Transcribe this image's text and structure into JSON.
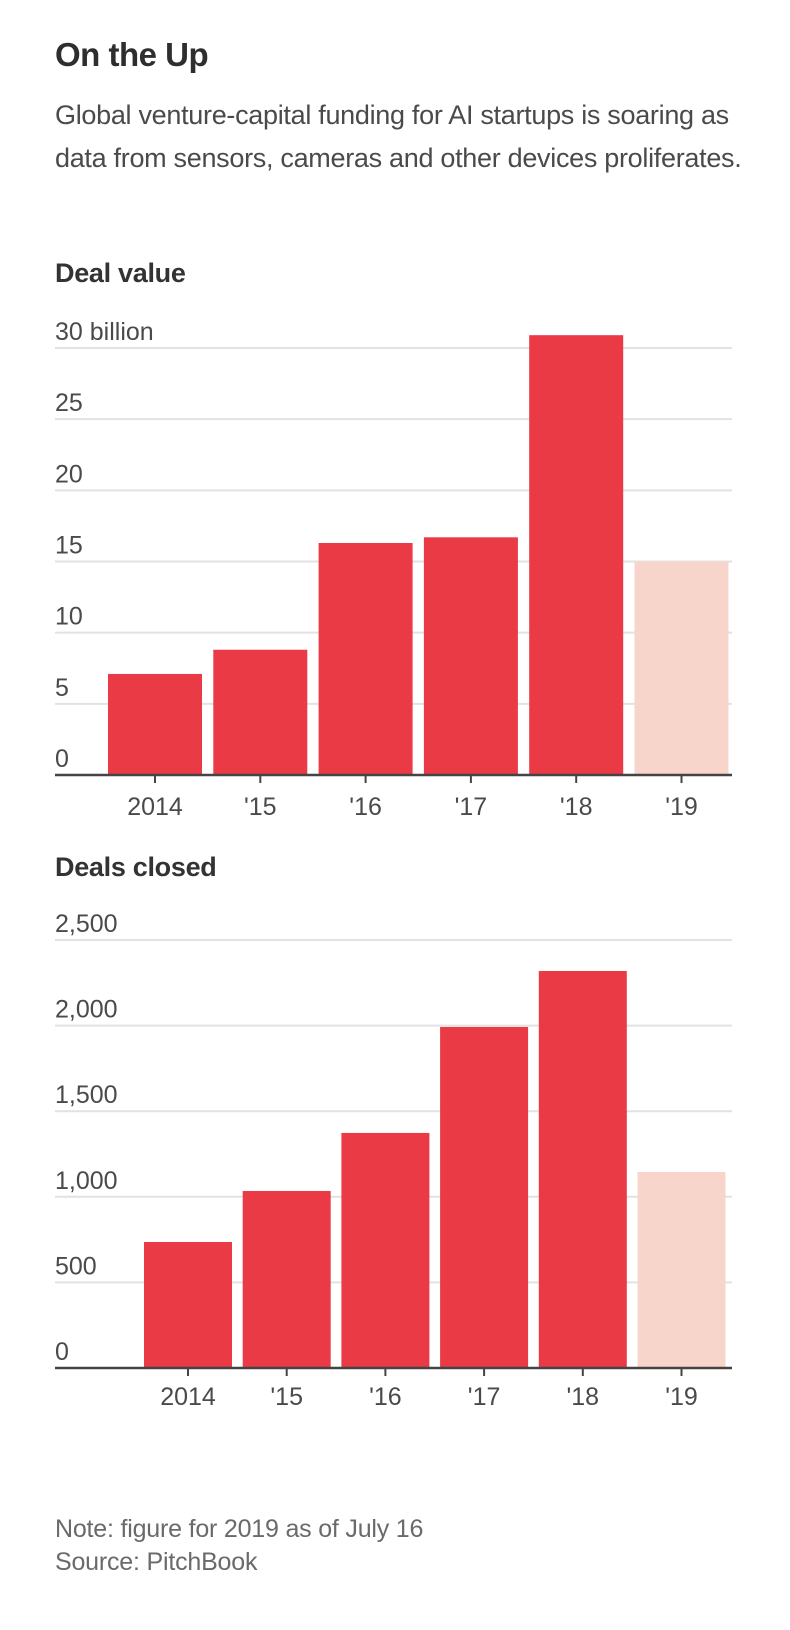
{
  "header": {
    "title": "On the Up",
    "subtitle": "Global venture-capital funding for AI startups is soaring as data from sensors, cameras and other devices proliferates."
  },
  "colors": {
    "bar": "#e93a45",
    "bar_partial": "#f8d5ca",
    "gridline": "#e2e2e2",
    "axis": "#444444"
  },
  "chart_data": [
    {
      "type": "bar",
      "title": "Deal value",
      "xlabel": "",
      "ylabel": "",
      "categories": [
        "2014",
        "'15",
        "'16",
        "'17",
        "'18",
        "'19"
      ],
      "values": [
        7.1,
        8.8,
        16.3,
        16.7,
        30.9,
        15.0
      ],
      "partial": [
        false,
        false,
        false,
        false,
        false,
        true
      ],
      "unit": "billion",
      "ylim": [
        0,
        30
      ],
      "yticks": [
        0,
        5,
        10,
        15,
        20,
        25,
        30
      ],
      "ytick_labels": [
        "0",
        "5",
        "10",
        "15",
        "20",
        "25",
        "30 billion"
      ],
      "grid": true
    },
    {
      "type": "bar",
      "title": "Deals closed",
      "xlabel": "",
      "ylabel": "",
      "categories": [
        "2014",
        "'15",
        "'16",
        "'17",
        "'18",
        "'19"
      ],
      "values": [
        736,
        1034,
        1373,
        1992,
        2319,
        1145
      ],
      "partial": [
        false,
        false,
        false,
        false,
        false,
        true
      ],
      "ylim": [
        0,
        2500
      ],
      "yticks": [
        0,
        500,
        1000,
        1500,
        2000,
        2500
      ],
      "ytick_labels": [
        "0",
        "500",
        "1,000",
        "1,500",
        "2,000",
        "2,500"
      ],
      "grid": true
    }
  ],
  "footer": {
    "note": "Note: figure for 2019 as of July 16",
    "source": "Source: PitchBook"
  }
}
